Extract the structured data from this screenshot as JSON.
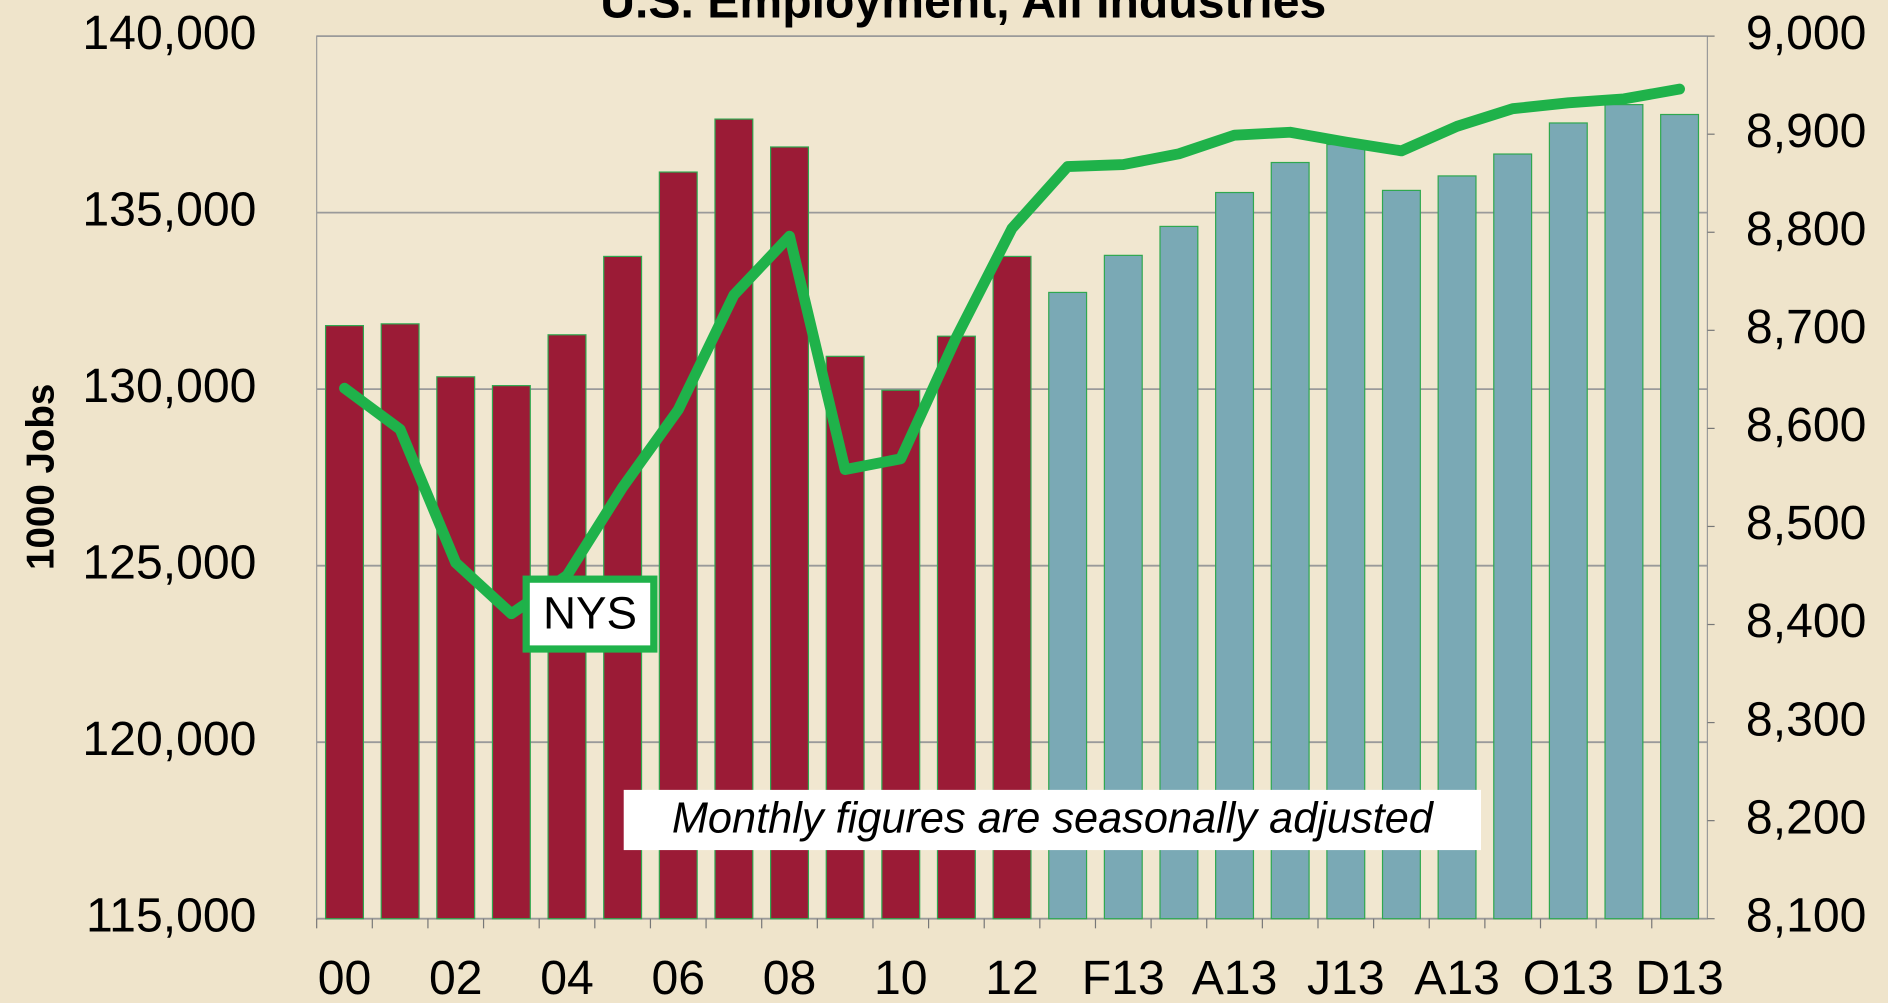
{
  "chart_data": {
    "type": "bar",
    "title": "U.S. Employment, All Industries",
    "y_label": "1000 Jobs",
    "annotations": [
      "NYS",
      "Monthly figures are seasonally adjusted"
    ],
    "categories": [
      "00",
      null,
      "02",
      null,
      "04",
      null,
      "06",
      null,
      "08",
      null,
      "10",
      null,
      "12",
      null,
      "F13",
      null,
      "A13",
      null,
      "J13",
      null,
      "A13",
      null,
      "O13",
      null,
      "D13"
    ],
    "series": [
      {
        "type": "bar",
        "color": "#9b1b36",
        "values": [
          131800,
          131850,
          130350,
          130100,
          131540,
          133760,
          136150,
          137650,
          136860,
          130930,
          129970,
          131500,
          133760,
          null,
          null,
          null,
          null,
          null,
          null,
          null,
          null,
          null,
          null,
          null,
          null
        ]
      },
      {
        "type": "bar",
        "color": "#7aa9b5",
        "values": [
          null,
          null,
          null,
          null,
          null,
          null,
          null,
          null,
          null,
          null,
          null,
          null,
          null,
          132740,
          133790,
          134610,
          135570,
          136420,
          136930,
          135630,
          136040,
          136660,
          137540,
          138060,
          137780
        ]
      },
      {
        "type": "line",
        "name": "NYS",
        "axis": "y2",
        "color": "#1fb24a",
        "values": [
          8641,
          8599,
          8463,
          8411,
          8450,
          8540,
          8619,
          8736,
          8796,
          8558,
          8569,
          8693,
          8804,
          8867,
          8869,
          8880,
          8899,
          8902,
          8892,
          8883,
          8908,
          8926,
          8932,
          8936,
          8946
        ]
      }
    ],
    "ylim": [
      115000,
      140000
    ],
    "yticks": [
      {
        "value": 115000,
        "label": "115,000"
      },
      {
        "value": 120000,
        "label": "120,000"
      },
      {
        "value": 125000,
        "label": "125,000"
      },
      {
        "value": 130000,
        "label": "130,000"
      },
      {
        "value": 135000,
        "label": "135,000"
      },
      {
        "value": 140000,
        "label": "140,000"
      }
    ],
    "y2lim": [
      8100,
      9000
    ],
    "y2ticks": [
      {
        "value": 8100,
        "label": "8,100"
      },
      {
        "value": 8200,
        "label": "8,200"
      },
      {
        "value": 8300,
        "label": "8,300"
      },
      {
        "value": 8400,
        "label": "8,400"
      },
      {
        "value": 8500,
        "label": "8,500"
      },
      {
        "value": 8600,
        "label": "8,600"
      },
      {
        "value": 8700,
        "label": "8,700"
      },
      {
        "value": 8800,
        "label": "8,800"
      },
      {
        "value": 8900,
        "label": "8,900"
      },
      {
        "value": 9000,
        "label": "9,000"
      }
    ],
    "grid": true
  }
}
